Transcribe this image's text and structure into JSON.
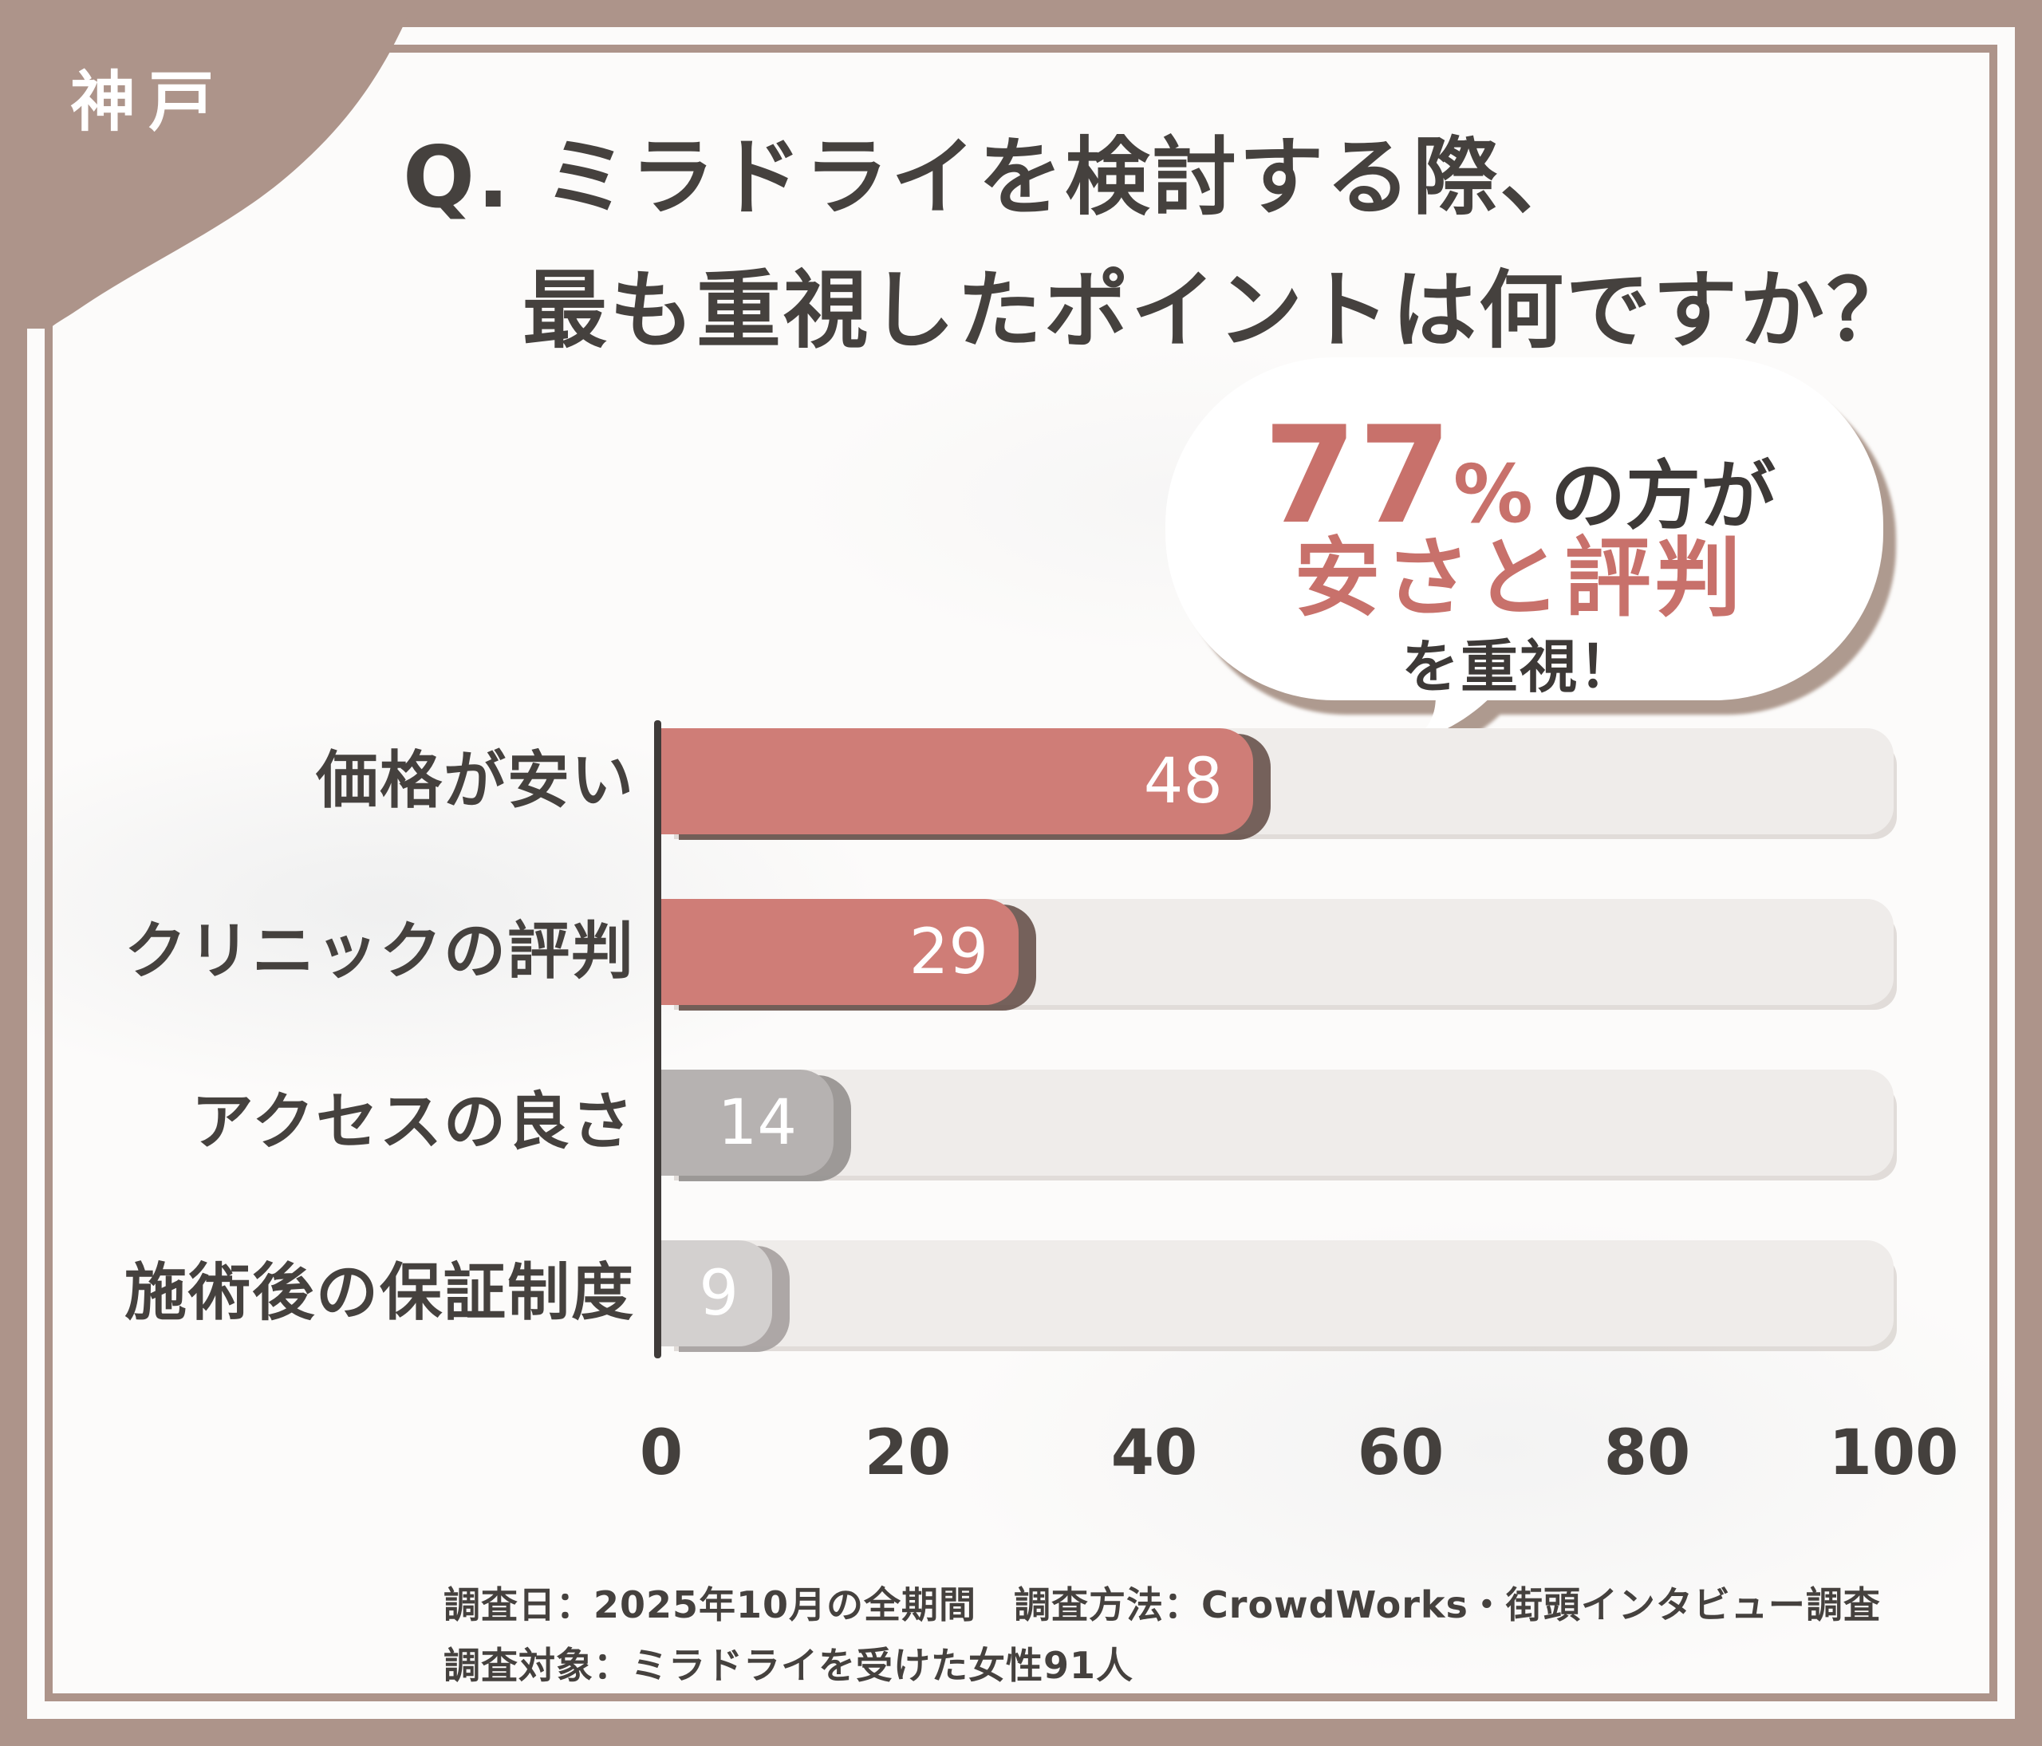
{
  "badge": {
    "label": "神戸"
  },
  "title": {
    "line1": "Q. ミラドライを検討する際、",
    "line2": "最も重視したポイントは何ですか？"
  },
  "bubble": {
    "stat_number": "77",
    "stat_percent": "%",
    "stat_suffix": "の方が",
    "highlight": "安さと評判",
    "emphasis": "を重視！"
  },
  "chart_data": {
    "type": "bar",
    "orientation": "horizontal",
    "title": "Q. ミラドライを検討する際、最も重視したポイントは何ですか？",
    "categories": [
      "価格が安い",
      "クリニックの評判",
      "アクセスの良さ",
      "施術後の保証制度"
    ],
    "values": [
      48,
      29,
      14,
      9
    ],
    "value_labels_position": "inside-end",
    "bar_colors": [
      "#cf7d77",
      "#cf7d77",
      "#b6b2b1",
      "#d3d0cf"
    ],
    "track_color": "#efecea",
    "xlim": [
      0,
      100
    ],
    "x_ticks": [
      0,
      20,
      40,
      60,
      80,
      100
    ],
    "grid": false,
    "legend": "none",
    "annotation": "77%の方が安さと評判を重視！"
  },
  "footer": {
    "line1": "調査日：2025年10月の全期間　調査方法：CrowdWorks・街頭インタビュー調査",
    "line2": "調査対象：ミラドライを受けた女性91人"
  },
  "colors": {
    "frame_brown": "#ad948a",
    "card_white": "#fcfbfa",
    "ink": "#45413e",
    "accent_red": "#cf7d77",
    "accent_red_text": "#c8716b",
    "gray_bar": "#b6b2b1",
    "gray_bar_light": "#d3d0cf",
    "track": "#efecea",
    "value_text": "#ffffff"
  }
}
